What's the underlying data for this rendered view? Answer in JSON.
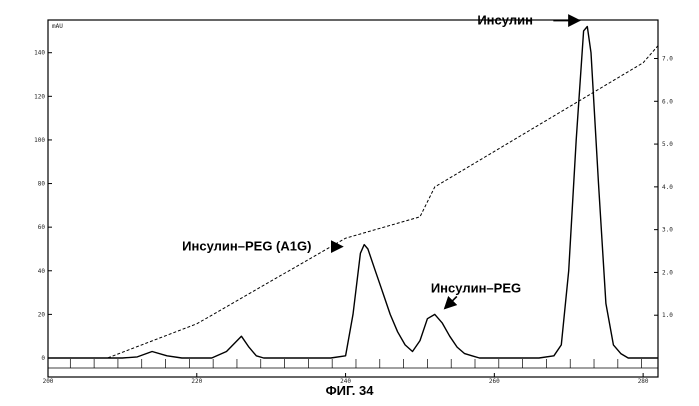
{
  "caption": "ФИГ. 34",
  "chart_data": {
    "type": "line",
    "title": "",
    "xlabel": "",
    "ylabel": "",
    "left_axis": {
      "unit": "mAU",
      "ticks": [
        "0",
        "20",
        "40",
        "60",
        "80",
        "100",
        "120",
        "140"
      ],
      "ylim": [
        0,
        155
      ]
    },
    "right_axis": {
      "ticks": [
        "1.0",
        "2.0",
        "3.0",
        "4.0",
        "5.0",
        "6.0",
        "7.0"
      ],
      "ylim": [
        0,
        7.9
      ]
    },
    "x_axis": {
      "ticks": [
        "200",
        "220",
        "240",
        "260",
        "280"
      ],
      "xlim": [
        200,
        282
      ]
    },
    "grid": false,
    "series": [
      {
        "style": "solid",
        "x": [
          200,
          208,
          210,
          212,
          214,
          216,
          218,
          220,
          222,
          224,
          226,
          227,
          228,
          229,
          230,
          231,
          232,
          234,
          236,
          238,
          240,
          241,
          242,
          242.5,
          243,
          244,
          245,
          246,
          247,
          248,
          249,
          250,
          251,
          252,
          253,
          254,
          255,
          256,
          257,
          258,
          260,
          262,
          264,
          266,
          268,
          269,
          270,
          271,
          272,
          272.5,
          273,
          274,
          275,
          276,
          277,
          278,
          280,
          282
        ],
        "y": [
          0,
          0,
          0,
          0.5,
          3,
          1,
          0,
          0,
          0,
          3,
          10,
          5,
          1,
          0,
          0,
          0,
          0,
          0,
          0,
          0,
          1,
          20,
          48,
          52,
          50,
          40,
          30,
          20,
          12,
          6,
          3,
          8,
          18,
          20,
          16,
          10,
          5,
          2,
          1,
          0,
          0,
          0,
          0,
          0,
          1,
          6,
          40,
          100,
          150,
          152,
          140,
          80,
          25,
          6,
          2,
          0,
          0,
          0
        ]
      },
      {
        "style": "dashed",
        "x": [
          200,
          208,
          220,
          240,
          250,
          252,
          280,
          282
        ],
        "y": [
          0,
          0,
          0.8,
          2.8,
          3.3,
          4.0,
          6.9,
          7.3
        ]
      }
    ],
    "annotations": [
      {
        "text": "Инсулин",
        "x": 272.5,
        "y": 152
      },
      {
        "text": "Инсулин–PEG",
        "x": 252,
        "y": 20
      },
      {
        "text": "Инсулин–PEG (A1G)",
        "x": 242.5,
        "y": 52
      }
    ]
  }
}
